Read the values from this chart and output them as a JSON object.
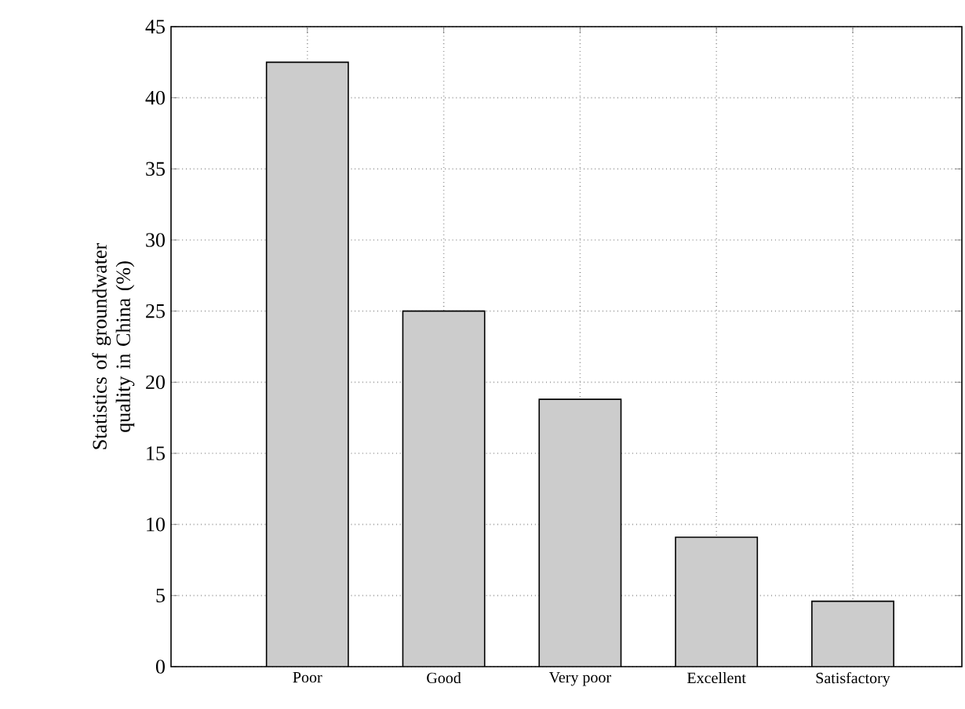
{
  "chart_data": {
    "type": "bar",
    "ylabel": "Statistics of groundwater quality in China (%)",
    "categories": [
      "Poor",
      "Good",
      "Very poor",
      "Excellent",
      "Satisfactory"
    ],
    "values": [
      42.5,
      25.0,
      18.8,
      9.1,
      4.6
    ],
    "color": "#cccccc",
    "ylim": [
      0,
      45
    ],
    "yticks": [
      0,
      5,
      10,
      15,
      20,
      25,
      30,
      35,
      40,
      45
    ],
    "grid": true
  }
}
